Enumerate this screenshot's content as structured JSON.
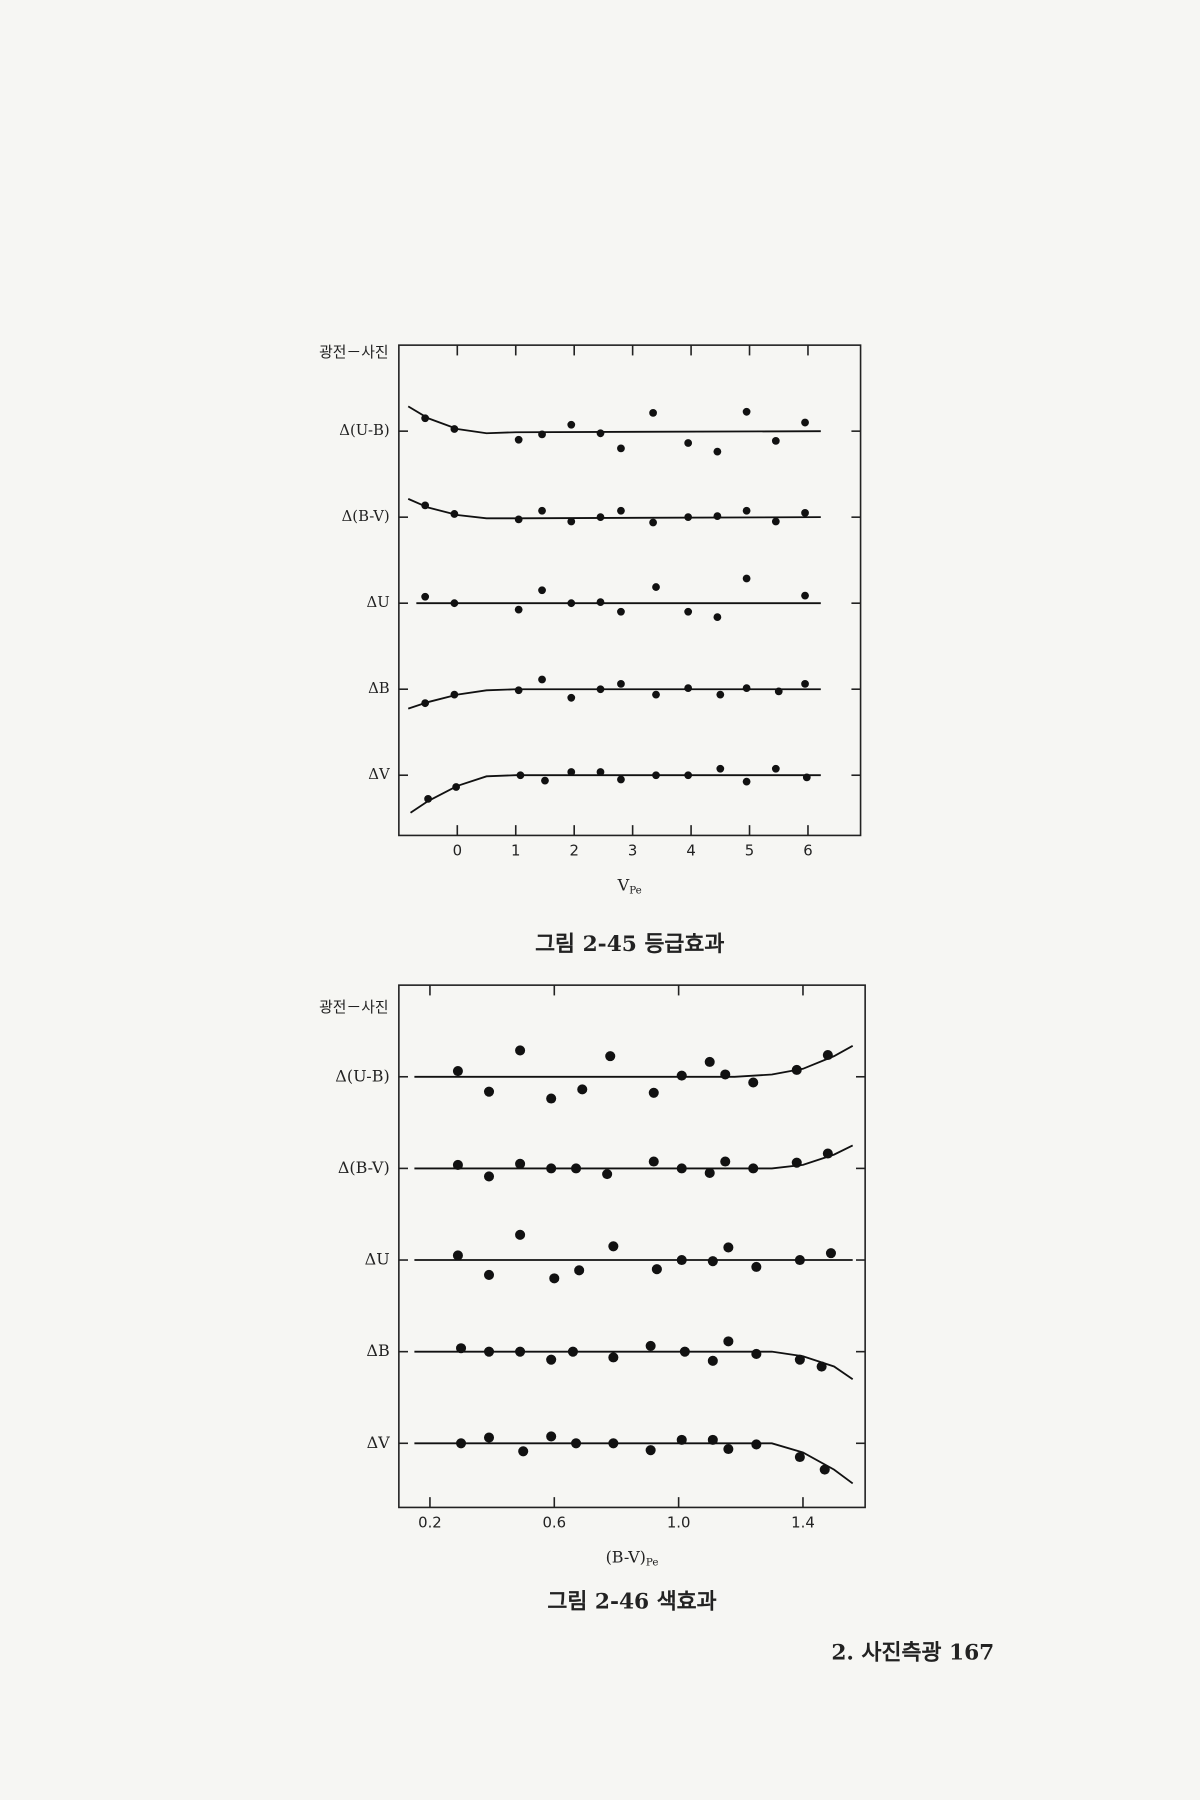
{
  "chart_data": [
    {
      "type": "scatter",
      "title": "그림 2-45  등급효과",
      "ylabel": "광전－사진",
      "xlabel": "V",
      "xlabel_sub": "Pe",
      "xlim": [
        -1,
        6.9
      ],
      "xticks": [
        0,
        1,
        2,
        3,
        4,
        5,
        6
      ],
      "row_ylim": [
        -0.4,
        0.4
      ],
      "color": "#111111",
      "series": [
        {
          "name": "Δ(U-B)",
          "x": [
            -0.55,
            -0.05,
            1.05,
            1.45,
            1.95,
            2.45,
            2.8,
            3.35,
            3.95,
            4.45,
            4.95,
            5.45,
            5.95
          ],
          "values": [
            0.12,
            0.02,
            -0.08,
            -0.03,
            0.06,
            -0.02,
            -0.16,
            0.17,
            -0.11,
            -0.19,
            0.18,
            -0.09,
            0.08
          ],
          "fit_x": [
            -0.84,
            -0.5,
            0,
            0.5,
            1,
            6.22
          ],
          "fit_values": [
            0.23,
            0.12,
            0.02,
            -0.02,
            -0.01,
            0
          ]
        },
        {
          "name": "Δ(B-V)",
          "x": [
            -0.55,
            -0.05,
            1.05,
            1.45,
            1.95,
            2.45,
            2.8,
            3.35,
            3.95,
            4.45,
            4.95,
            5.45,
            5.95
          ],
          "values": [
            0.11,
            0.03,
            -0.02,
            0.06,
            -0.04,
            0,
            0.06,
            -0.05,
            0,
            0.01,
            0.06,
            -0.04,
            0.04
          ],
          "fit_x": [
            -0.84,
            -0.5,
            0,
            0.5,
            1,
            6.22
          ],
          "fit_values": [
            0.17,
            0.09,
            0.02,
            -0.01,
            -0.01,
            0
          ]
        },
        {
          "name": "ΔU",
          "x": [
            -0.55,
            -0.05,
            1.05,
            1.45,
            1.95,
            2.45,
            2.8,
            3.4,
            3.95,
            4.45,
            4.95,
            5.95
          ],
          "values": [
            0.06,
            0,
            -0.06,
            0.12,
            0,
            0.01,
            -0.08,
            0.15,
            -0.08,
            -0.13,
            0.23,
            0.07
          ],
          "fit_x": [
            -0.7,
            6.22
          ],
          "fit_values": [
            0,
            0
          ]
        },
        {
          "name": "ΔB",
          "x": [
            -0.55,
            -0.05,
            1.05,
            1.45,
            1.95,
            2.45,
            2.8,
            3.4,
            3.95,
            4.5,
            4.95,
            5.5,
            5.95
          ],
          "values": [
            -0.13,
            -0.05,
            -0.01,
            0.09,
            -0.08,
            0,
            0.05,
            -0.05,
            0.01,
            -0.05,
            0.01,
            -0.02,
            0.05
          ],
          "fit_x": [
            -0.84,
            -0.5,
            0,
            0.5,
            1,
            6.22
          ],
          "fit_values": [
            -0.18,
            -0.12,
            -0.05,
            -0.01,
            0,
            0
          ]
        },
        {
          "name": "ΔV",
          "x": [
            -0.5,
            -0.02,
            1.08,
            1.5,
            1.95,
            2.45,
            2.8,
            3.4,
            3.95,
            4.5,
            4.95,
            5.45,
            5.98
          ],
          "values": [
            -0.22,
            -0.11,
            0,
            -0.05,
            0.03,
            0.03,
            -0.04,
            0,
            0,
            0.06,
            -0.06,
            0.06,
            -0.02
          ],
          "fit_x": [
            -0.8,
            -0.5,
            0,
            0.5,
            1,
            6.22
          ],
          "fit_values": [
            -0.35,
            -0.24,
            -0.1,
            -0.01,
            0,
            0
          ]
        }
      ]
    },
    {
      "type": "scatter",
      "title": "그림 2-46  색효과",
      "ylabel": "광전－사진",
      "xlabel": "(B-V)",
      "xlabel_sub": "Pe",
      "xlim": [
        0.1,
        1.6
      ],
      "xticks": [
        0.2,
        0.6,
        {
          "value": 1.0,
          "label": "1.0"
        },
        1.4
      ],
      "row_ylim": [
        -0.4,
        0.4
      ],
      "color": "#111111",
      "series": [
        {
          "name": "Δ(U-B)",
          "x": [
            0.29,
            0.39,
            0.49,
            0.59,
            0.69,
            0.78,
            0.92,
            1.01,
            1.1,
            1.15,
            1.24,
            1.38,
            1.48
          ],
          "values": [
            0.05,
            -0.13,
            0.23,
            -0.19,
            -0.11,
            0.18,
            -0.14,
            0.01,
            0.13,
            0.02,
            -0.05,
            0.06,
            0.19
          ],
          "fit_x": [
            0.15,
            1.18,
            1.3,
            1.4,
            1.5,
            1.56
          ],
          "fit_values": [
            0,
            0,
            0.02,
            0.07,
            0.18,
            0.27
          ]
        },
        {
          "name": "Δ(B-V)",
          "x": [
            0.29,
            0.39,
            0.49,
            0.59,
            0.67,
            0.77,
            0.92,
            1.01,
            1.1,
            1.15,
            1.24,
            1.38,
            1.48
          ],
          "values": [
            0.03,
            -0.07,
            0.04,
            0,
            0,
            -0.05,
            0.06,
            0,
            -0.04,
            0.06,
            0,
            0.05,
            0.13
          ],
          "fit_x": [
            0.15,
            1.3,
            1.4,
            1.5,
            1.56
          ],
          "fit_values": [
            0,
            0,
            0.03,
            0.12,
            0.2
          ]
        },
        {
          "name": "ΔU",
          "x": [
            0.29,
            0.39,
            0.49,
            0.6,
            0.68,
            0.79,
            0.93,
            1.01,
            1.11,
            1.16,
            1.25,
            1.39,
            1.49
          ],
          "values": [
            0.04,
            -0.13,
            0.22,
            -0.16,
            -0.09,
            0.12,
            -0.08,
            0,
            -0.01,
            0.11,
            -0.06,
            0,
            0.06
          ],
          "fit_x": [
            0.15,
            1.56
          ],
          "fit_values": [
            0,
            0
          ]
        },
        {
          "name": "ΔB",
          "x": [
            0.3,
            0.39,
            0.49,
            0.59,
            0.66,
            0.79,
            0.91,
            1.02,
            1.11,
            1.16,
            1.25,
            1.39,
            1.46
          ],
          "values": [
            0.03,
            0,
            0,
            -0.07,
            0,
            -0.05,
            0.05,
            0,
            -0.08,
            0.09,
            -0.02,
            -0.07,
            -0.13
          ],
          "fit_x": [
            0.15,
            1.3,
            1.4,
            1.5,
            1.56
          ],
          "fit_values": [
            0,
            0,
            -0.04,
            -0.13,
            -0.24
          ]
        },
        {
          "name": "ΔV",
          "x": [
            0.3,
            0.39,
            0.5,
            0.59,
            0.67,
            0.79,
            0.91,
            1.01,
            1.11,
            1.16,
            1.25,
            1.39,
            1.47
          ],
          "values": [
            0,
            0.05,
            -0.07,
            0.06,
            0,
            0,
            -0.06,
            0.03,
            0.03,
            -0.05,
            -0.01,
            -0.12,
            -0.23
          ],
          "fit_x": [
            0.15,
            1.3,
            1.4,
            1.5,
            1.56
          ],
          "fit_values": [
            0,
            0,
            -0.08,
            -0.23,
            -0.35
          ]
        }
      ]
    }
  ],
  "footer": "2. 사진측광  167"
}
